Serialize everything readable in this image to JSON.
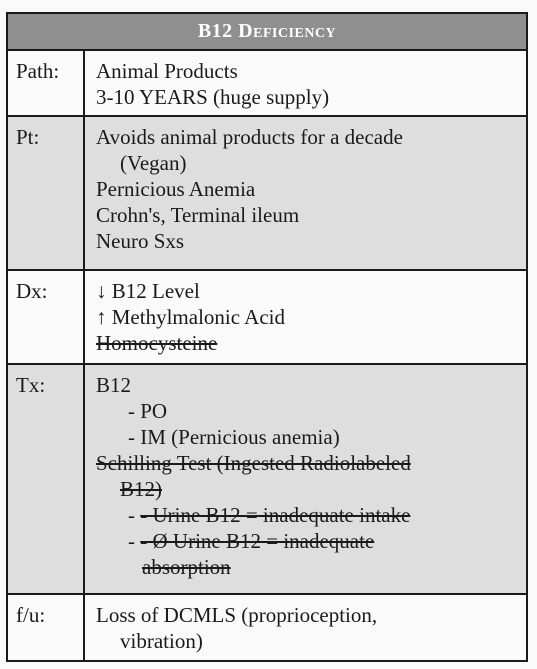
{
  "table": {
    "title_main": "B12",
    "title_rest": "Deficiency",
    "rows": {
      "path": {
        "label": "Path:",
        "lines": [
          "Animal Products",
          "3-10 YEARS (huge supply)"
        ]
      },
      "pt": {
        "label": "Pt:",
        "lines": [
          "Avoids animal products for a decade",
          "(Vegan)",
          "Pernicious Anemia",
          "Crohn's, Terminal ileum",
          "Neuro Sxs"
        ]
      },
      "dx": {
        "label": "Dx:",
        "lines": [
          "↓ B12 Level",
          "↑ Methylmalonic Acid",
          "Homocysteine"
        ]
      },
      "tx": {
        "label": "Tx:",
        "lines": [
          "B12",
          "- PO",
          "- IM (Pernicious anemia)",
          "Schilling Test (Ingested Radiolabeled",
          "B12)",
          "- ",
          "- Urine B12 = inadequate intake",
          "- ",
          "- Ø Urine B12 = inadequate",
          "absorption"
        ]
      },
      "fu": {
        "label": "f/u:",
        "lines": [
          "Loss of DCMLS (proprioception,",
          "vibration)"
        ]
      }
    }
  }
}
